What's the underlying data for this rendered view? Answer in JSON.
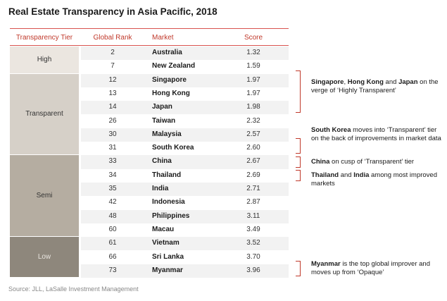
{
  "title": "Real Estate Transparency in Asia Pacific, 2018",
  "columns": {
    "tier": "Transparency Tier",
    "rank": "Global Rank",
    "market": "Market",
    "score": "Score"
  },
  "tiers": [
    {
      "label": "High",
      "color": "#ebe6e0"
    },
    {
      "label": "Transparent",
      "color": "#d6d0c8"
    },
    {
      "label": "Semi",
      "color": "#b5ada1"
    },
    {
      "label": "Low",
      "color": "#8e877c"
    }
  ],
  "notes": [
    {
      "parts": [
        {
          "b": "Singapore"
        },
        {
          "t": ", "
        },
        {
          "b": "Hong Kong"
        },
        {
          "t": " and "
        },
        {
          "b": "Japan"
        },
        {
          "t": " on the verge of ‘Highly Transparent’"
        }
      ]
    },
    {
      "parts": [
        {
          "b": "South Korea"
        },
        {
          "t": " moves into ‘Transparent’ tier on the back of improvements in market data"
        }
      ]
    },
    {
      "parts": [
        {
          "b": "China"
        },
        {
          "t": " on cusp of ‘Transparent’ tier"
        }
      ]
    },
    {
      "parts": [
        {
          "b": "Thailand"
        },
        {
          "t": " and "
        },
        {
          "b": "India"
        },
        {
          "t": " among most improved markets"
        }
      ]
    },
    {
      "parts": [
        {
          "b": "Myanmar"
        },
        {
          "t": " is the top global improver and moves up from ‘Opaque’"
        }
      ]
    }
  ],
  "source": "Source: JLL, LaSalle Investment Management",
  "chart_data": {
    "type": "table",
    "title": "Real Estate Transparency in Asia Pacific, 2018",
    "columns": [
      "Transparency Tier",
      "Global Rank",
      "Market",
      "Score"
    ],
    "rows": [
      {
        "tier": "High",
        "rank": "2",
        "market": "Australia",
        "score": "1.32"
      },
      {
        "tier": "High",
        "rank": "7",
        "market": "New Zealand",
        "score": "1.59"
      },
      {
        "tier": "Transparent",
        "rank": "12",
        "market": "Singapore",
        "score": "1.97"
      },
      {
        "tier": "Transparent",
        "rank": "13",
        "market": "Hong Kong",
        "score": "1.97"
      },
      {
        "tier": "Transparent",
        "rank": "14",
        "market": "Japan",
        "score": "1.98"
      },
      {
        "tier": "Transparent",
        "rank": "26",
        "market": "Taiwan",
        "score": "2.32"
      },
      {
        "tier": "Transparent",
        "rank": "30",
        "market": "Malaysia",
        "score": "2.57"
      },
      {
        "tier": "Transparent",
        "rank": "31",
        "market": "South Korea",
        "score": "2.60"
      },
      {
        "tier": "Semi",
        "rank": "33",
        "market": "China",
        "score": "2.67"
      },
      {
        "tier": "Semi",
        "rank": "34",
        "market": "Thailand",
        "score": "2.69"
      },
      {
        "tier": "Semi",
        "rank": "35",
        "market": "India",
        "score": "2.71"
      },
      {
        "tier": "Semi",
        "rank": "42",
        "market": "Indonesia",
        "score": "2.87"
      },
      {
        "tier": "Semi",
        "rank": "48",
        "market": "Philippines",
        "score": "3.11"
      },
      {
        "tier": "Semi",
        "rank": "60",
        "market": "Macau",
        "score": "3.49"
      },
      {
        "tier": "Low",
        "rank": "61",
        "market": "Vietnam",
        "score": "3.52"
      },
      {
        "tier": "Low",
        "rank": "66",
        "market": "Sri Lanka",
        "score": "3.70"
      },
      {
        "tier": "Low",
        "rank": "73",
        "market": "Myanmar",
        "score": "3.96"
      }
    ]
  }
}
